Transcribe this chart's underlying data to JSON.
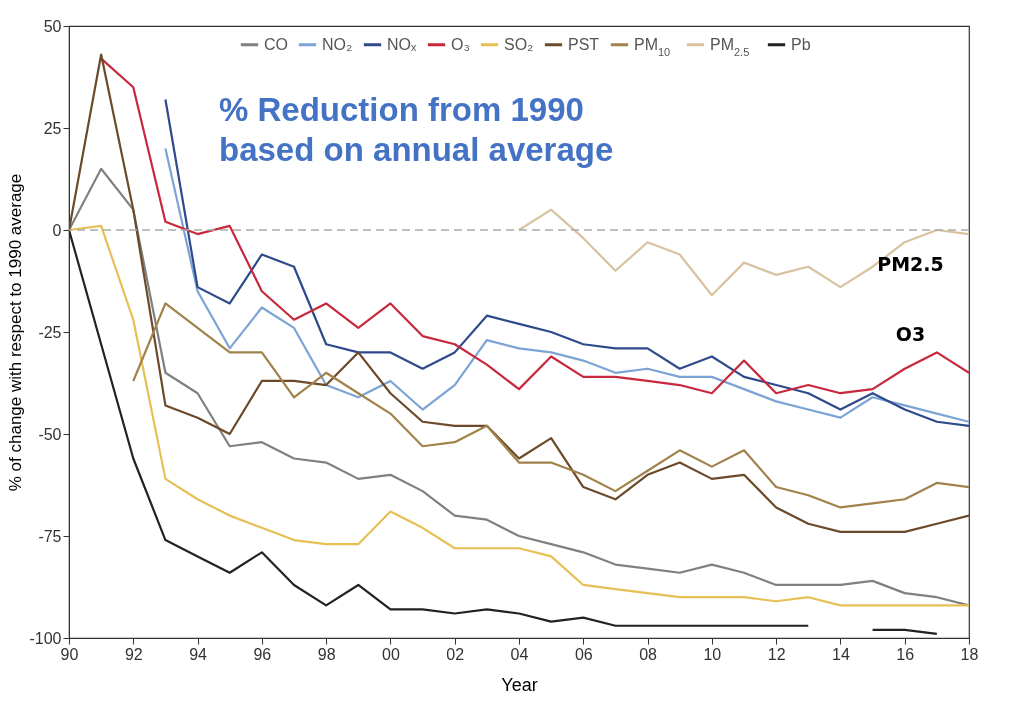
{
  "chart_data": {
    "type": "line",
    "title": "% Reduction from 1990 based on annual average",
    "xlabel": "Year",
    "ylabel": "% of change with respect to 1990 average",
    "x": [
      1990,
      1991,
      1992,
      1993,
      1994,
      1995,
      1996,
      1997,
      1998,
      1999,
      2000,
      2001,
      2002,
      2003,
      2004,
      2005,
      2006,
      2007,
      2008,
      2009,
      2010,
      2011,
      2012,
      2013,
      2014,
      2015,
      2016,
      2017,
      2018
    ],
    "series": [
      {
        "name": "CO",
        "color": "#808080",
        "values": [
          0,
          15,
          5,
          -35,
          -40,
          -53,
          -52,
          -56,
          -57,
          -61,
          -60,
          -64,
          -70,
          -71,
          -75,
          -77,
          -79,
          -82,
          -83,
          -84,
          -82,
          -84,
          -87,
          -87,
          -87,
          -86,
          -89,
          -90,
          -92
        ]
      },
      {
        "name": "NO₂",
        "color": "#7ba3d4",
        "values": [
          null,
          null,
          null,
          20,
          -15,
          -29,
          -19,
          -24,
          -38,
          -41,
          -37,
          -44,
          -38,
          -27,
          -29,
          -30,
          -32,
          -35,
          -34,
          -36,
          -36,
          -39,
          -42,
          -44,
          -46,
          -41,
          -43,
          -45,
          -47
        ]
      },
      {
        "name": "NOₓ",
        "color": "#2e4a8c",
        "values": [
          null,
          null,
          null,
          32,
          -14,
          -18,
          -6,
          -9,
          -28,
          -30,
          -30,
          -34,
          -30,
          -21,
          -23,
          -25,
          -28,
          -29,
          -29,
          -34,
          -31,
          -36,
          -38,
          -40,
          -44,
          -40,
          -44,
          -47,
          -48
        ]
      },
      {
        "name": "O₃",
        "color": "#c8283c",
        "values": [
          null,
          42,
          35,
          2,
          -1,
          1,
          -15,
          -22,
          -18,
          -24,
          -18,
          -26,
          -28,
          -33,
          -39,
          -31,
          -36,
          -36,
          -37,
          -38,
          -40,
          -32,
          -40,
          -38,
          -40,
          -39,
          -34,
          -30,
          -35
        ]
      },
      {
        "name": "SO₂",
        "color": "#e6bf55",
        "values": [
          0,
          1,
          -22,
          -61,
          -66,
          -70,
          -73,
          -76,
          -77,
          -77,
          -69,
          -73,
          -78,
          -78,
          -78,
          -80,
          -87,
          -88,
          -89,
          -90,
          -90,
          -90,
          -91,
          -90,
          -92,
          -92,
          -92,
          -92,
          -92
        ]
      },
      {
        "name": "PST",
        "color": "#6b4a2a",
        "values": [
          0,
          43,
          5,
          -43,
          -46,
          -50,
          -37,
          -37,
          -38,
          -30,
          -40,
          -47,
          -48,
          -48,
          -56,
          -51,
          -63,
          -66,
          -60,
          -57,
          -61,
          -60,
          -68,
          -72,
          -74,
          -74,
          -74,
          -72,
          -70
        ]
      },
      {
        "name": "PM$_{10}$",
        "color": "#a0824a",
        "values": [
          null,
          null,
          -37,
          -18,
          -24,
          -30,
          -30,
          -41,
          -35,
          -40,
          -45,
          -53,
          -52,
          -48,
          -57,
          -57,
          -60,
          -64,
          -59,
          -54,
          -58,
          -54,
          -63,
          -65,
          -68,
          -67,
          -66,
          -62,
          -63
        ]
      },
      {
        "name": "PM$_{2.5}$",
        "color": "#d9c2a0",
        "values": [
          null,
          null,
          null,
          null,
          null,
          null,
          null,
          null,
          null,
          null,
          null,
          null,
          null,
          null,
          0,
          5,
          -2,
          -10,
          -3,
          -6,
          -16,
          -8,
          -11,
          -9,
          -14,
          -9,
          -3,
          0,
          -1
        ]
      },
      {
        "name": "Pb",
        "color": "#222222",
        "values": [
          0,
          -28,
          -56,
          -76,
          -80,
          -84,
          -79,
          -87,
          -92,
          -87,
          -93,
          -93,
          -94,
          -93,
          -94,
          -96,
          -95,
          -97,
          -97,
          -97,
          -97,
          -97,
          -97,
          -97,
          null,
          -98,
          -98,
          -99,
          null
        ]
      }
    ],
    "xlim": [
      1990,
      2018
    ],
    "xticks": [
      {
        "value": 1990,
        "label": "90"
      },
      {
        "value": 1992,
        "label": "92"
      },
      {
        "value": 1994,
        "label": "94"
      },
      {
        "value": 1996,
        "label": "96"
      },
      {
        "value": 1998,
        "label": "98"
      },
      {
        "value": 2000,
        "label": "00"
      },
      {
        "value": 2002,
        "label": "02"
      },
      {
        "value": 2004,
        "label": "04"
      },
      {
        "value": 2006,
        "label": "06"
      },
      {
        "value": 2008,
        "label": "08"
      },
      {
        "value": 2010,
        "label": "10"
      },
      {
        "value": 2012,
        "label": "12"
      },
      {
        "value": 2014,
        "label": "14"
      },
      {
        "value": 2016,
        "label": "16"
      },
      {
        "value": 2018,
        "label": "18"
      }
    ],
    "ylim": [
      -100,
      50
    ],
    "yticks": [
      -100,
      -75,
      -50,
      -25,
      0,
      25,
      50
    ],
    "ref_lines": [
      {
        "axis": "y",
        "value": 0,
        "color": "#aaaaaa",
        "line_style": "dashed"
      }
    ],
    "annotations": [
      "PM2.5",
      "O3"
    ],
    "legend": "top",
    "grid": false
  }
}
